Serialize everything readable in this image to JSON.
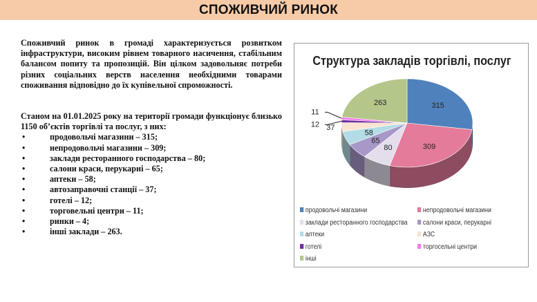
{
  "header": {
    "title": "СПОЖИВЧИЙ РИНОК"
  },
  "text": {
    "paragraph": "Споживчий ринок в громаді характеризується розвитком інфраструктури, високим рівнем товарного насичення, стабільним балансом попиту та пропозицій. Він цілком задовольняє потреби різних соціальних верств населення необхідними товарами споживання відповідно до їх купівельної спроможності.",
    "intro": "Станом на 01.01.2025 року на території громади функціонує близько 1150 об’єктів торгівлі та послуг, з них:",
    "items": [
      "продовольчі магазини – 315;",
      "непродовольчі магазини – 309;",
      "заклади ресторанного господарства – 80;",
      "салони краси, перукарні – 65;",
      "аптеки – 58;",
      "автозаправочні станції – 37;",
      "готелі – 12;",
      "торговельні центри – 11;",
      "ринки – 4;",
      "інші заклади – 263."
    ]
  },
  "chart_data": {
    "type": "pie",
    "title": "Структура закладів торгівлі, послуг",
    "categories": [
      "продовольчі магазини",
      "непродовольчі магазини",
      "заклади ресторанного господарства",
      "салони краси, перукарні",
      "аптеки",
      "АЗС",
      "готелі",
      "торгосельні центри",
      "інші"
    ],
    "values": [
      315,
      309,
      80,
      65,
      58,
      37,
      12,
      11,
      263
    ],
    "colors": [
      "#4F81BD",
      "#E47B9B",
      "#E4DEEC",
      "#A898C8",
      "#B4DCE6",
      "#FBE3D2",
      "#7030A0",
      "#F27CEE",
      "#B5C68A"
    ],
    "legend": "bottom",
    "style": "3d"
  }
}
